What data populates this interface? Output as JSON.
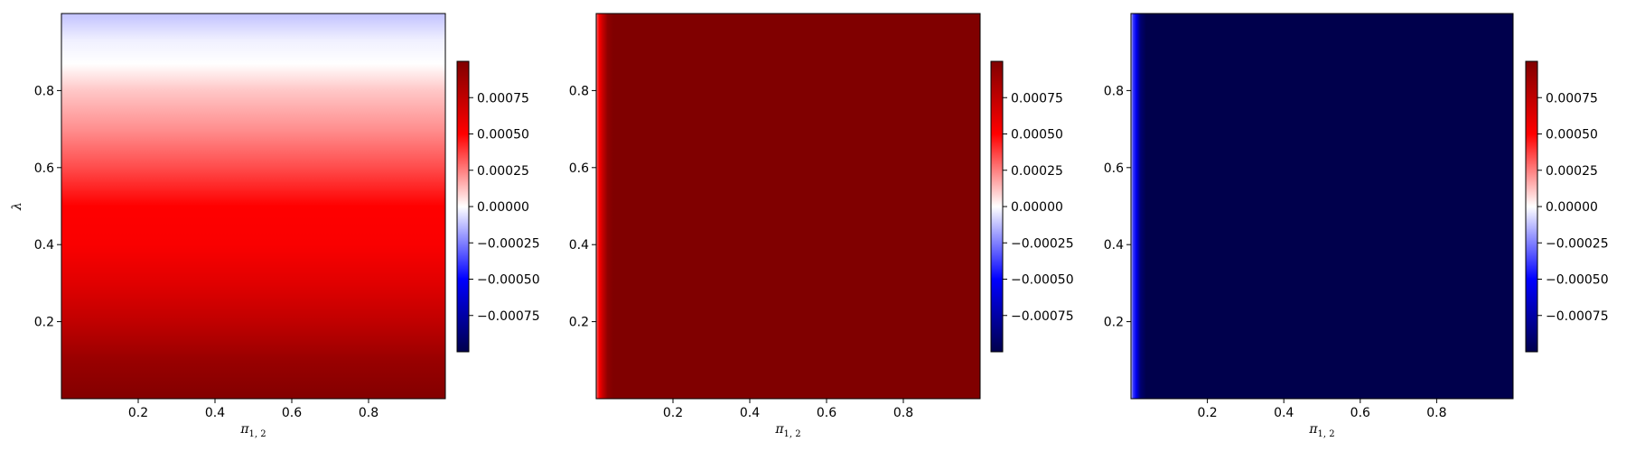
{
  "colormap": {
    "name": "seismic",
    "stops": [
      {
        "pos": 0.0,
        "color": "#00004c"
      },
      {
        "pos": 0.25,
        "color": "#0000ff"
      },
      {
        "pos": 0.5,
        "color": "#ffffff"
      },
      {
        "pos": 0.75,
        "color": "#ff0000"
      },
      {
        "pos": 1.0,
        "color": "#800000"
      }
    ]
  },
  "chart_data": [
    {
      "type": "heatmap",
      "title": "",
      "xlabel": "π",
      "xlabel_sub": "1, 2",
      "ylabel": "λ",
      "xlim": [
        0.0,
        1.0
      ],
      "ylim": [
        0.0,
        1.0
      ],
      "xticks": [
        0.2,
        0.4,
        0.6,
        0.8
      ],
      "yticks": [
        0.2,
        0.4,
        0.6,
        0.8
      ],
      "colorbar_ticks": [
        "0.00075",
        "0.00050",
        "0.00025",
        "0.00000",
        "−0.00025",
        "−0.00050",
        "−0.00075"
      ],
      "colorbar_tick_values": [
        0.00075,
        0.0005,
        0.00025,
        0.0,
        -0.00025,
        -0.0005,
        -0.00075
      ],
      "vrange": [
        -0.001,
        0.001
      ],
      "gradient_axis": "y",
      "field_profile": [
        {
          "coord": 0.0,
          "value": 0.00099
        },
        {
          "coord": 0.1,
          "value": 0.0009
        },
        {
          "coord": 0.2,
          "value": 0.00075
        },
        {
          "coord": 0.3,
          "value": 0.00062
        },
        {
          "coord": 0.4,
          "value": 0.00052
        },
        {
          "coord": 0.5,
          "value": 0.0005
        },
        {
          "coord": 0.6,
          "value": 0.00035
        },
        {
          "coord": 0.7,
          "value": 0.00022
        },
        {
          "coord": 0.8,
          "value": 0.00011
        },
        {
          "coord": 0.87,
          "value": 0.0
        },
        {
          "coord": 0.93,
          "value": -3e-05
        },
        {
          "coord": 1.0,
          "value": -0.00012
        }
      ]
    },
    {
      "type": "heatmap",
      "title": "",
      "xlabel": "π",
      "xlabel_sub": "1, 2",
      "ylabel": "",
      "xlim": [
        0.0,
        1.0
      ],
      "ylim": [
        0.0,
        1.0
      ],
      "xticks": [
        0.2,
        0.4,
        0.6,
        0.8
      ],
      "yticks": [
        0.2,
        0.4,
        0.6,
        0.8
      ],
      "colorbar_ticks": [
        "0.00075",
        "0.00050",
        "0.00025",
        "0.00000",
        "−0.00025",
        "−0.00050",
        "−0.00075"
      ],
      "colorbar_tick_values": [
        0.00075,
        0.0005,
        0.00025,
        0.0,
        -0.00025,
        -0.0005,
        -0.00075
      ],
      "vrange": [
        -0.001,
        0.001
      ],
      "gradient_axis": "x",
      "field_profile": [
        {
          "coord": 0.0,
          "value": 0.0003
        },
        {
          "coord": 0.008,
          "value": 0.00052
        },
        {
          "coord": 0.016,
          "value": 0.0007
        },
        {
          "coord": 0.03,
          "value": 0.00095
        },
        {
          "coord": 0.045,
          "value": 0.001
        },
        {
          "coord": 1.0,
          "value": 0.001
        }
      ]
    },
    {
      "type": "heatmap",
      "title": "",
      "xlabel": "π",
      "xlabel_sub": "1, 2",
      "ylabel": "",
      "xlim": [
        0.0,
        1.0
      ],
      "ylim": [
        0.0,
        1.0
      ],
      "xticks": [
        0.2,
        0.4,
        0.6,
        0.8
      ],
      "yticks": [
        0.2,
        0.4,
        0.6,
        0.8
      ],
      "colorbar_ticks": [
        "0.00075",
        "0.00050",
        "0.00025",
        "0.00000",
        "−0.00025",
        "−0.00050",
        "−0.00075"
      ],
      "colorbar_tick_values": [
        0.00075,
        0.0005,
        0.00025,
        0.0,
        -0.00025,
        -0.0005,
        -0.00075
      ],
      "vrange": [
        -0.001,
        0.001
      ],
      "gradient_axis": "x",
      "field_profile": [
        {
          "coord": 0.0,
          "value": -0.0001
        },
        {
          "coord": 0.006,
          "value": -0.0004
        },
        {
          "coord": 0.014,
          "value": -0.00055
        },
        {
          "coord": 0.025,
          "value": -0.0009
        },
        {
          "coord": 0.04,
          "value": -0.001
        },
        {
          "coord": 1.0,
          "value": -0.001
        }
      ]
    }
  ]
}
